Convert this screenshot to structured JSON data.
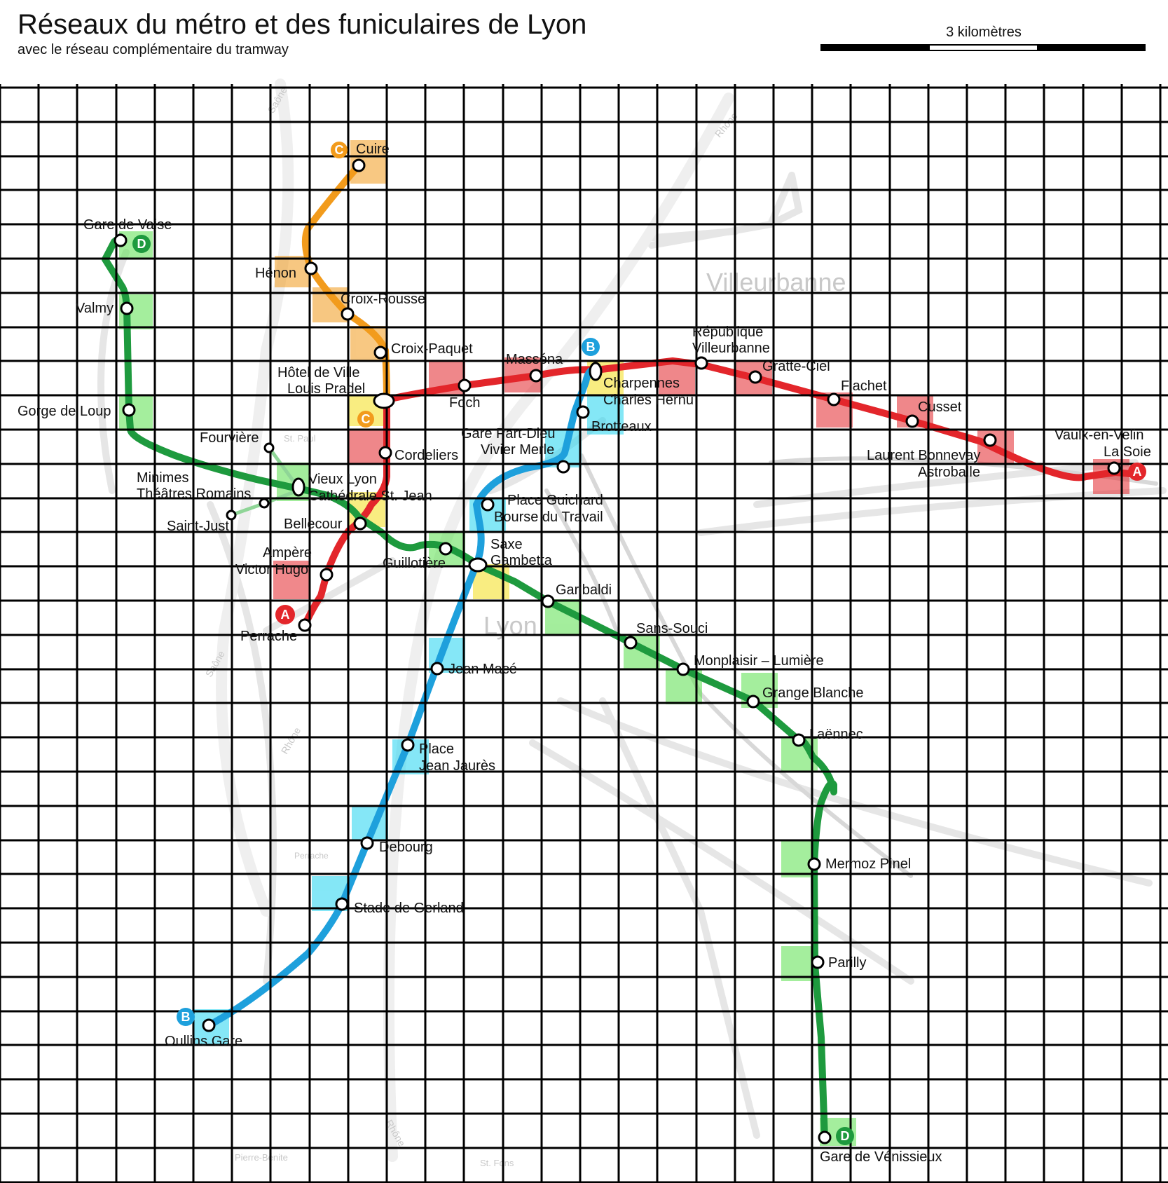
{
  "title": "Réseaux du métro et des funiculaires de Lyon",
  "subtitle": "avec le réseau complémentaire du tramway",
  "scale_label": "3 kilomètres",
  "background_labels": {
    "villeurbanne": "Villeurbanne",
    "lyon": "Lyon",
    "saone_1": "Saône",
    "saone_2": "Saône",
    "rhone_1": "Rhône",
    "rhone_2": "Rhône",
    "rhone_3": "Rhône",
    "st_paul": "St. Paul",
    "perrache_bg": "Perrache",
    "pierre_benite": "Pierre-Bénite",
    "st_fons": "St. Fons"
  },
  "colors": {
    "line_a": "#e3262b",
    "line_b": "#1ea0dc",
    "line_c": "#f29b1c",
    "line_d": "#1e9a3e",
    "funicular": "#7fc98a",
    "grid": "#000000"
  },
  "lines": {
    "a": {
      "badge": "A"
    },
    "b": {
      "badge": "B"
    },
    "c": {
      "badge": "C"
    },
    "d": {
      "badge": "D"
    }
  },
  "stations": {
    "cuire": "Cuire",
    "henon": "Hénon",
    "croix_rousse": "Croix-Rousse",
    "croix_paquet": "Croix-Paquet",
    "hotel_de_ville": "Hôtel de Ville",
    "louis_pradel": "Louis Pradel",
    "foch": "Foch",
    "massena": "Masséna",
    "charpennes": "Charpennes",
    "charles_hernu": "Charles Hernu",
    "republique": "République",
    "villeurbanne": "Villeurbanne",
    "gratte_ciel": "Gratte-Ciel",
    "flachet": "Flachet",
    "cusset": "Cusset",
    "laurent_bonnevay": "Laurent Bonnevay",
    "astroballe": "Astroballe",
    "vaulx_en_velin": "Vaulx-en-Velin",
    "la_soie": "La Soie",
    "gare_de_vaise": "Gare de Vaise",
    "valmy": "Valmy",
    "gorge_de_loup": "Gorge de Loup",
    "fourviere": "Fourvière",
    "minimes": "Minimes",
    "theatres_romains": "Théâtres Romains",
    "saint_just": "Saint-Just",
    "vieux_lyon": "Vieux Lyon",
    "cathedrale_st_jean": "Cathédrale St. Jean",
    "cordeliers": "Cordeliers",
    "brotteaux": "Brotteaux",
    "gare_part_dieu": "Gare Part-Dieu",
    "vivier_merle": "Vivier Merle",
    "place_guichard": "Place Guichard",
    "bourse_du_travail": "Bourse du Travail",
    "bellecour": "Bellecour",
    "ampere": "Ampère",
    "victor_hugo": "Victor Hugo",
    "perrache": "Perrache",
    "guillotiere": "Guillotière",
    "saxe": "Saxe",
    "gambetta": "Gambetta",
    "garibaldi": "Garibaldi",
    "sans_souci": "Sans-Souci",
    "monplaisir_lumiere": "Monplaisir – Lumière",
    "grange_blanche": "Grange Blanche",
    "laennec": "Laënnec",
    "mermoz_pinel": "Mermoz Pinel",
    "parilly": "Parilly",
    "gare_de_venissieux": "Gare de Vénissieux",
    "jean_mace": "Jean Macé",
    "place": "Place",
    "jean_jaures": "Jean Jaurès",
    "debourg": "Debourg",
    "stade_de_gerland": "Stade de Gerland",
    "oullins_gare": "Oullins Gare"
  }
}
